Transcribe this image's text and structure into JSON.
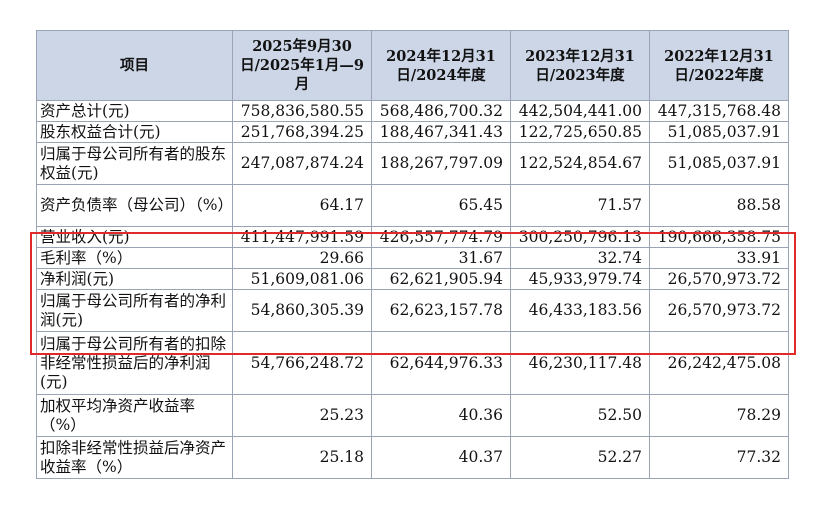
{
  "table": {
    "headers": [
      "项目",
      "2025年9月30日/2025年1月—9月",
      "2024年12月31日/2024年度",
      "2023年12月31日/2023年度",
      "2022年12月31日/2022年度"
    ],
    "rows": [
      {
        "label": "资产总计(元)",
        "values": [
          "758,836,580.55",
          "568,486,700.32",
          "442,504,441.00",
          "447,315,768.48"
        ]
      },
      {
        "label": "股东权益合计(元)",
        "values": [
          "251,768,394.25",
          "188,467,341.43",
          "122,725,650.85",
          "51,085,037.91"
        ]
      },
      {
        "label": "归属于母公司所有者的股东权益(元)",
        "values": [
          "247,087,874.24",
          "188,267,797.09",
          "122,524,854.67",
          "51,085,037.91"
        ]
      },
      {
        "label": "资产负债率（母公司）（%）",
        "values": [
          "64.17",
          "65.45",
          "71.57",
          "88.58"
        ]
      },
      {
        "label": "营业收入(元)",
        "values": [
          "411,447,991.59",
          "426,557,774.79",
          "300,250,796.13",
          "190,666,358.75"
        ]
      },
      {
        "label": "毛利率（%）",
        "values": [
          "29.66",
          "31.67",
          "32.74",
          "33.91"
        ]
      },
      {
        "label": "净利润(元)",
        "values": [
          "51,609,081.06",
          "62,621,905.94",
          "45,933,979.74",
          "26,570,973.72"
        ]
      },
      {
        "label": "归属于母公司所有者的净利润(元)",
        "values": [
          "54,860,305.39",
          "62,623,157.78",
          "46,433,183.56",
          "26,570,973.72"
        ]
      },
      {
        "label": "归属于母公司所有者的扣除非经常性损益后的净利润(元)",
        "values": [
          "54,766,248.72",
          "62,644,976.33",
          "46,230,117.48",
          "26,242,475.08"
        ]
      },
      {
        "label": "加权平均净资产收益率（%）",
        "values": [
          "25.23",
          "40.36",
          "52.50",
          "78.29"
        ]
      },
      {
        "label": "扣除非经常性损益后净资产收益率（%）",
        "values": [
          "25.18",
          "40.37",
          "52.27",
          "77.32"
        ]
      }
    ]
  },
  "highlight": {
    "color": "#e02a2a"
  }
}
